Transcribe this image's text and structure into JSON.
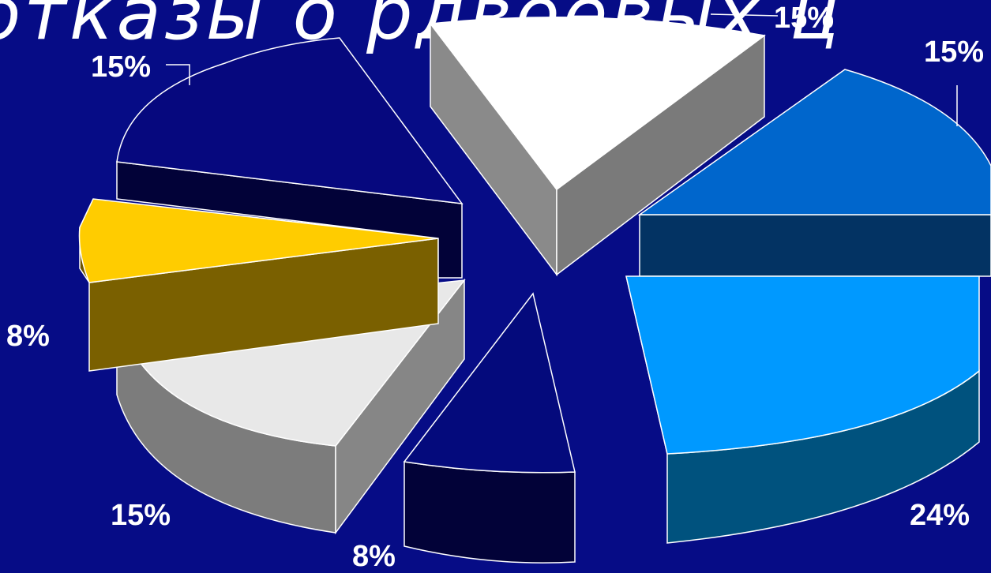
{
  "header": {
    "title_fragment": "отказы о рдвоевых ц"
  },
  "colors": {
    "background": "#060c86"
  },
  "chart_data": {
    "type": "pie",
    "style": "3d-exploded",
    "slices": [
      {
        "label": "15%",
        "value": 15,
        "color": "#ffffff"
      },
      {
        "label": "15%",
        "value": 15,
        "color": "#0066cc"
      },
      {
        "label": "24%",
        "value": 24,
        "color": "#0099ff"
      },
      {
        "label": "8%",
        "value": 8,
        "color": "#020242"
      },
      {
        "label": "15%",
        "value": 15,
        "color": "#e8e8e8"
      },
      {
        "label": "8%",
        "value": 8,
        "color": "#ffcc00"
      },
      {
        "label": "15%",
        "value": 15,
        "color": "#06087e"
      }
    ]
  }
}
